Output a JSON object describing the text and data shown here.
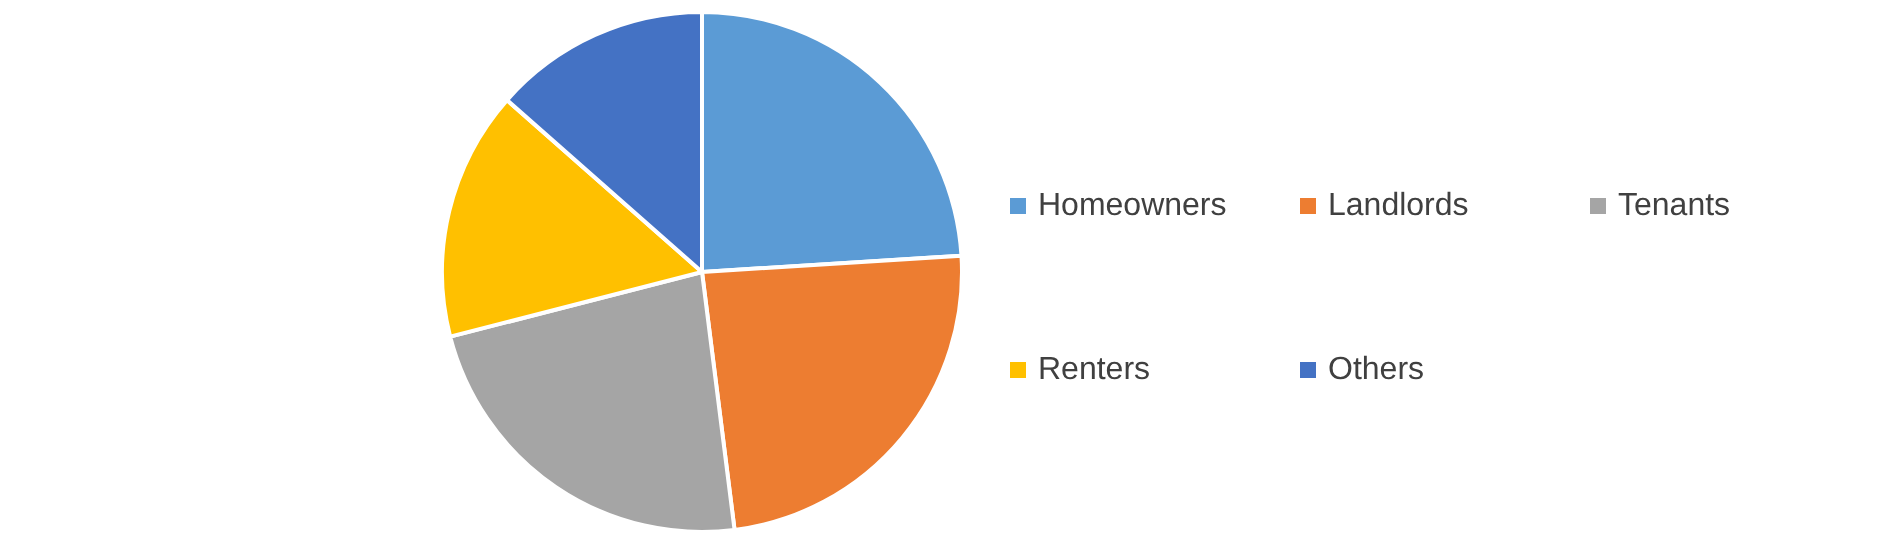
{
  "chart_data": {
    "type": "pie",
    "categories": [
      "Homeowners",
      "Landlords",
      "Tenants",
      "Renters",
      "Others"
    ],
    "values": [
      24,
      24,
      23,
      15.5,
      13.5
    ],
    "colors": [
      "#5b9bd5",
      "#ed7d31",
      "#a5a5a5",
      "#ffc000",
      "#4472c4"
    ],
    "legend": "right"
  }
}
